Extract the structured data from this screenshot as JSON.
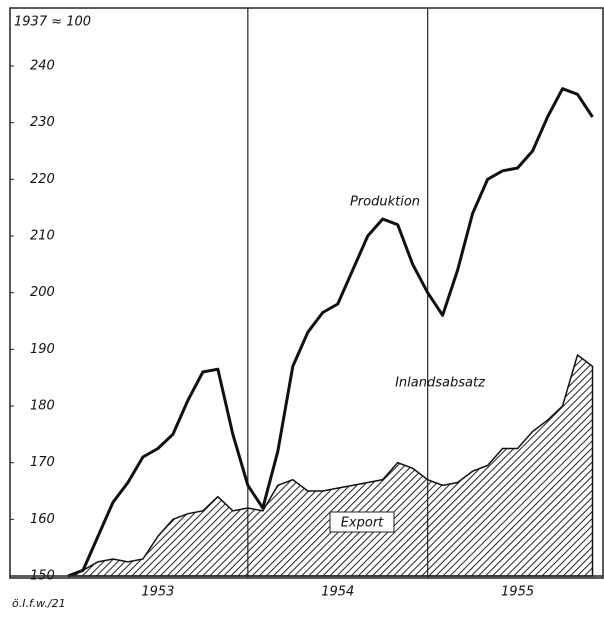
{
  "chart_data": {
    "type": "line",
    "title": "1937 ≈ 100",
    "source": "ö.I.f.w./21",
    "x": [
      0,
      1,
      2,
      3,
      4,
      5,
      6,
      7,
      8,
      9,
      10,
      11,
      12,
      13,
      14,
      15,
      16,
      17,
      18,
      19,
      20,
      21,
      22,
      23,
      24,
      25,
      26,
      27,
      28,
      29,
      30,
      31,
      32,
      33,
      34,
      35
    ],
    "xlim": [
      0,
      35.7
    ],
    "xticks": [
      {
        "value": 6,
        "label": "1953"
      },
      {
        "value": 18,
        "label": "1954"
      },
      {
        "value": 30,
        "label": "1955"
      }
    ],
    "year_boundaries": [
      12,
      24
    ],
    "ylim": [
      150,
      240
    ],
    "yticks": [
      150,
      160,
      170,
      180,
      190,
      200,
      210,
      220,
      230,
      240
    ],
    "series": [
      {
        "name": "Produktion",
        "color": "#111111",
        "values": [
          150,
          151,
          157,
          163,
          166.5,
          171,
          172.5,
          175,
          181,
          186,
          186.5,
          175,
          166,
          162,
          172,
          187,
          193,
          196.5,
          198,
          204,
          210,
          213,
          212,
          205,
          200,
          196,
          204,
          214,
          220,
          221.5,
          222,
          225,
          231,
          236,
          235,
          231
        ]
      },
      {
        "name": "Inlandsabsatz",
        "color": "#111111",
        "values": [
          150,
          151,
          152.5,
          153,
          152.5,
          153,
          157,
          160,
          161,
          161.5,
          164,
          161.5,
          162,
          161.5,
          166,
          167,
          165,
          165,
          165.5,
          166,
          166.5,
          167,
          170,
          169,
          167,
          166,
          166.5,
          168.5,
          169.5,
          172.5,
          172.5,
          175.5,
          177.5,
          180,
          189,
          187
        ]
      }
    ],
    "area_label": "Export"
  }
}
